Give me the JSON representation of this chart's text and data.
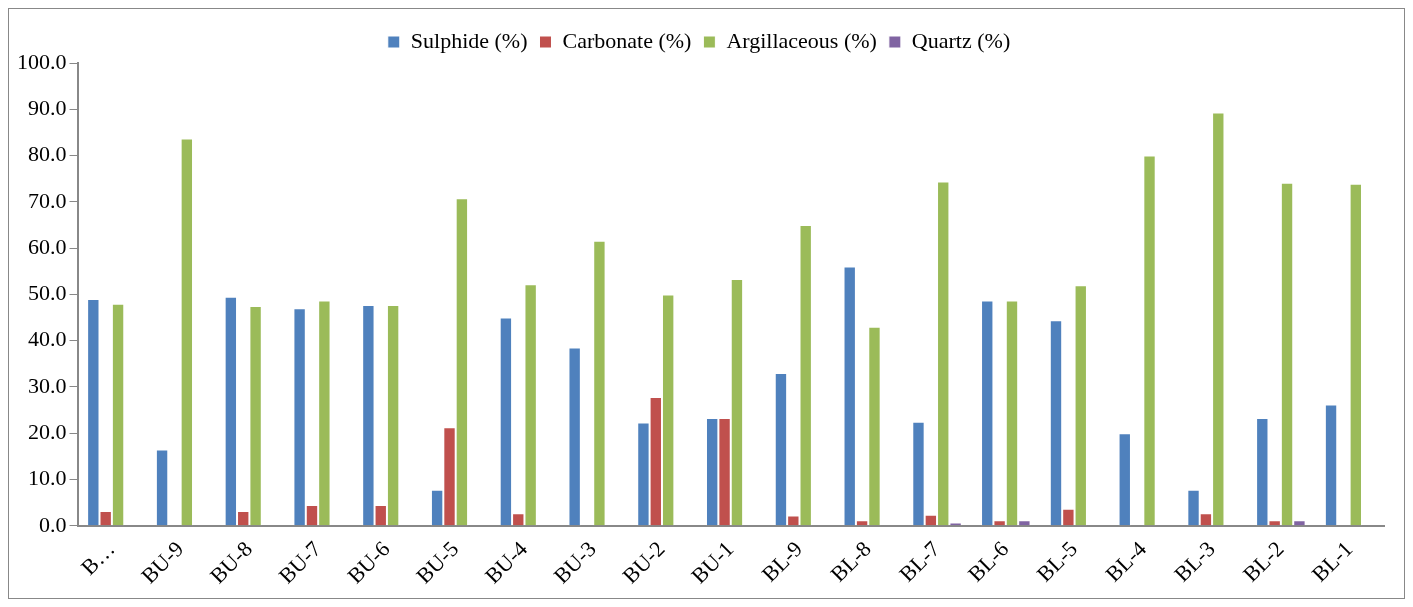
{
  "chart_data": {
    "type": "bar",
    "categories": [
      "B…",
      "BU-9",
      "BU-8",
      "BU-7",
      "BU-6",
      "BU-5",
      "BU-4",
      "BU-3",
      "BU-2",
      "BU-1",
      "BL-9",
      "BL-8",
      "BL-7",
      "BL-6",
      "BL-5",
      "BL-4",
      "BL-3",
      "BL-2",
      "BL-1"
    ],
    "series": [
      {
        "name": "Sulphide (%)",
        "color": "#4f81bd",
        "values": [
          49,
          16.5,
          49.5,
          47,
          47.7,
          7.8,
          45,
          38.5,
          22.3,
          23.3,
          33,
          56,
          22.5,
          48.7,
          44.4,
          20,
          7.8,
          23.3,
          26.2
        ]
      },
      {
        "name": "Carbonate (%)",
        "color": "#c0504d",
        "values": [
          3.2,
          null,
          3.2,
          4.5,
          4.5,
          21.3,
          2.7,
          null,
          27.8,
          23.3,
          2.2,
          1.2,
          2.4,
          1.2,
          3.7,
          null,
          2.7,
          1.2,
          null
        ]
      },
      {
        "name": "Argillaceous (%)",
        "color": "#9bbb59",
        "values": [
          48,
          83.7,
          47.5,
          48.7,
          47.7,
          70.8,
          52.2,
          61.6,
          50,
          53.3,
          65,
          43,
          74.4,
          48.7,
          52,
          80,
          89.3,
          74.1,
          73.9
        ]
      },
      {
        "name": "Quartz (%)",
        "color": "#8064a2",
        "values": [
          null,
          null,
          null,
          null,
          null,
          null,
          null,
          null,
          null,
          null,
          null,
          null,
          0.7,
          1.2,
          null,
          null,
          null,
          1.2,
          null
        ]
      }
    ],
    "ylim": [
      0,
      100
    ],
    "yticks": [
      {
        "value": 0,
        "label": "0.0"
      },
      {
        "value": 10,
        "label": "10.0"
      },
      {
        "value": 20,
        "label": "20.0"
      },
      {
        "value": 30,
        "label": "30.0"
      },
      {
        "value": 40,
        "label": "40.0"
      },
      {
        "value": 50,
        "label": "50.0"
      },
      {
        "value": 60,
        "label": "60.0"
      },
      {
        "value": 70,
        "label": "70.0"
      },
      {
        "value": 80,
        "label": "80.0"
      },
      {
        "value": 90,
        "label": "90.0"
      },
      {
        "value": 100,
        "label": "100.0"
      }
    ],
    "grid": false,
    "legend": "top"
  }
}
